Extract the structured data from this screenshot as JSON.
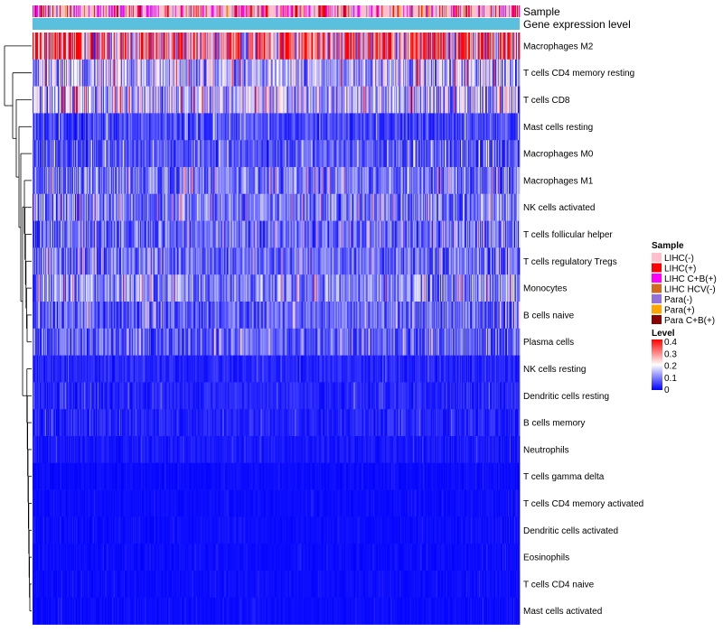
{
  "chart_data": {
    "type": "heatmap",
    "annotation_labels": [
      "Sample",
      "Gene expression level"
    ],
    "rows": [
      "Macrophages M2",
      "T cells CD4 memory resting",
      "T cells CD8",
      "Mast cells resting",
      "Macrophages M0",
      "Macrophages M1",
      "NK cells activated",
      "T cells follicular helper",
      "T cells regulatory  Tregs",
      "Monocytes",
      "B cells naive",
      "Plasma cells",
      "NK cells resting",
      "Dendritic cells resting",
      "B cells memory",
      "Neutrophils",
      "T cells gamma delta",
      "T cells CD4 memory activated",
      "Dendritic cells activated",
      "Eosinophils",
      "T cells CD4 naive",
      "Mast cells activated"
    ],
    "row_level_estimate": [
      0.3,
      0.15,
      0.16,
      0.06,
      0.07,
      0.1,
      0.1,
      0.09,
      0.09,
      0.11,
      0.08,
      0.08,
      0.03,
      0.03,
      0.03,
      0.02,
      0.01,
      0.01,
      0.01,
      0.01,
      0.01,
      0.01
    ],
    "legend_sample": {
      "title": "Sample",
      "items": [
        {
          "label": "LIHC(-)",
          "color": "#ffc0cb"
        },
        {
          "label": "LIHC(+)",
          "color": "#ff0000"
        },
        {
          "label": "LIHC C+B(+)",
          "color": "#ff00ff"
        },
        {
          "label": "LIHC HCV(-)",
          "color": "#d2691e"
        },
        {
          "label": "Para(-)",
          "color": "#9370db"
        },
        {
          "label": "Para(+)",
          "color": "#ffa500"
        },
        {
          "label": "Para C+B(+)",
          "color": "#8b0000"
        }
      ]
    },
    "legend_level": {
      "title": "Level",
      "ticks": [
        "0.4",
        "0.3",
        "0.2",
        "0.1",
        "0"
      ],
      "colors": [
        "#0000ff",
        "#ffffff",
        "#ff0000"
      ],
      "range": [
        0,
        0.4
      ]
    },
    "expression_bar_color": "#5bc0de"
  }
}
